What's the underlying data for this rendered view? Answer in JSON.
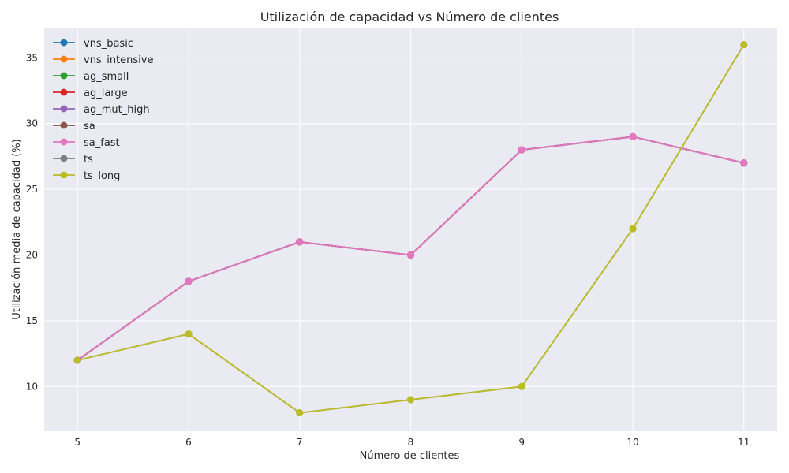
{
  "chart_data": {
    "type": "line",
    "title": "Utilización de capacidad vs Número de clientes",
    "xlabel": "Número de clientes",
    "ylabel": "Utilización media de capacidad (%)",
    "x": [
      5,
      6,
      7,
      8,
      9,
      10,
      11
    ],
    "xlim": [
      4.7,
      11.3
    ],
    "ylim": [
      6.6,
      37.3
    ],
    "xticks": [
      5,
      6,
      7,
      8,
      9,
      10,
      11
    ],
    "yticks": [
      10,
      15,
      20,
      25,
      30,
      35
    ],
    "grid": true,
    "legend_position": "top-left",
    "background_color": "#eaeaf2",
    "series": [
      {
        "name": "vns_basic",
        "color": "#1f77b4",
        "values": [
          12,
          18,
          21,
          20,
          28,
          29,
          27
        ]
      },
      {
        "name": "vns_intensive",
        "color": "#ff7f0e",
        "values": [
          12,
          18,
          21,
          20,
          28,
          29,
          27
        ]
      },
      {
        "name": "ag_small",
        "color": "#2ca02c",
        "values": [
          12,
          18,
          21,
          20,
          28,
          29,
          27
        ]
      },
      {
        "name": "ag_large",
        "color": "#d62728",
        "values": [
          12,
          18,
          21,
          20,
          28,
          29,
          27
        ]
      },
      {
        "name": "ag_mut_high",
        "color": "#9467bd",
        "values": [
          12,
          18,
          21,
          20,
          28,
          29,
          27
        ]
      },
      {
        "name": "sa",
        "color": "#8c564b",
        "values": [
          12,
          18,
          21,
          20,
          28,
          29,
          27
        ]
      },
      {
        "name": "sa_fast",
        "color": "#e377c2",
        "values": [
          12,
          18,
          21,
          20,
          28,
          29,
          27
        ]
      },
      {
        "name": "ts",
        "color": "#7f7f7f",
        "values": [
          12,
          14,
          8,
          9,
          10,
          22,
          36
        ]
      },
      {
        "name": "ts_long",
        "color": "#bcbd22",
        "values": [
          12,
          14,
          8,
          9,
          10,
          22,
          36
        ]
      }
    ]
  }
}
